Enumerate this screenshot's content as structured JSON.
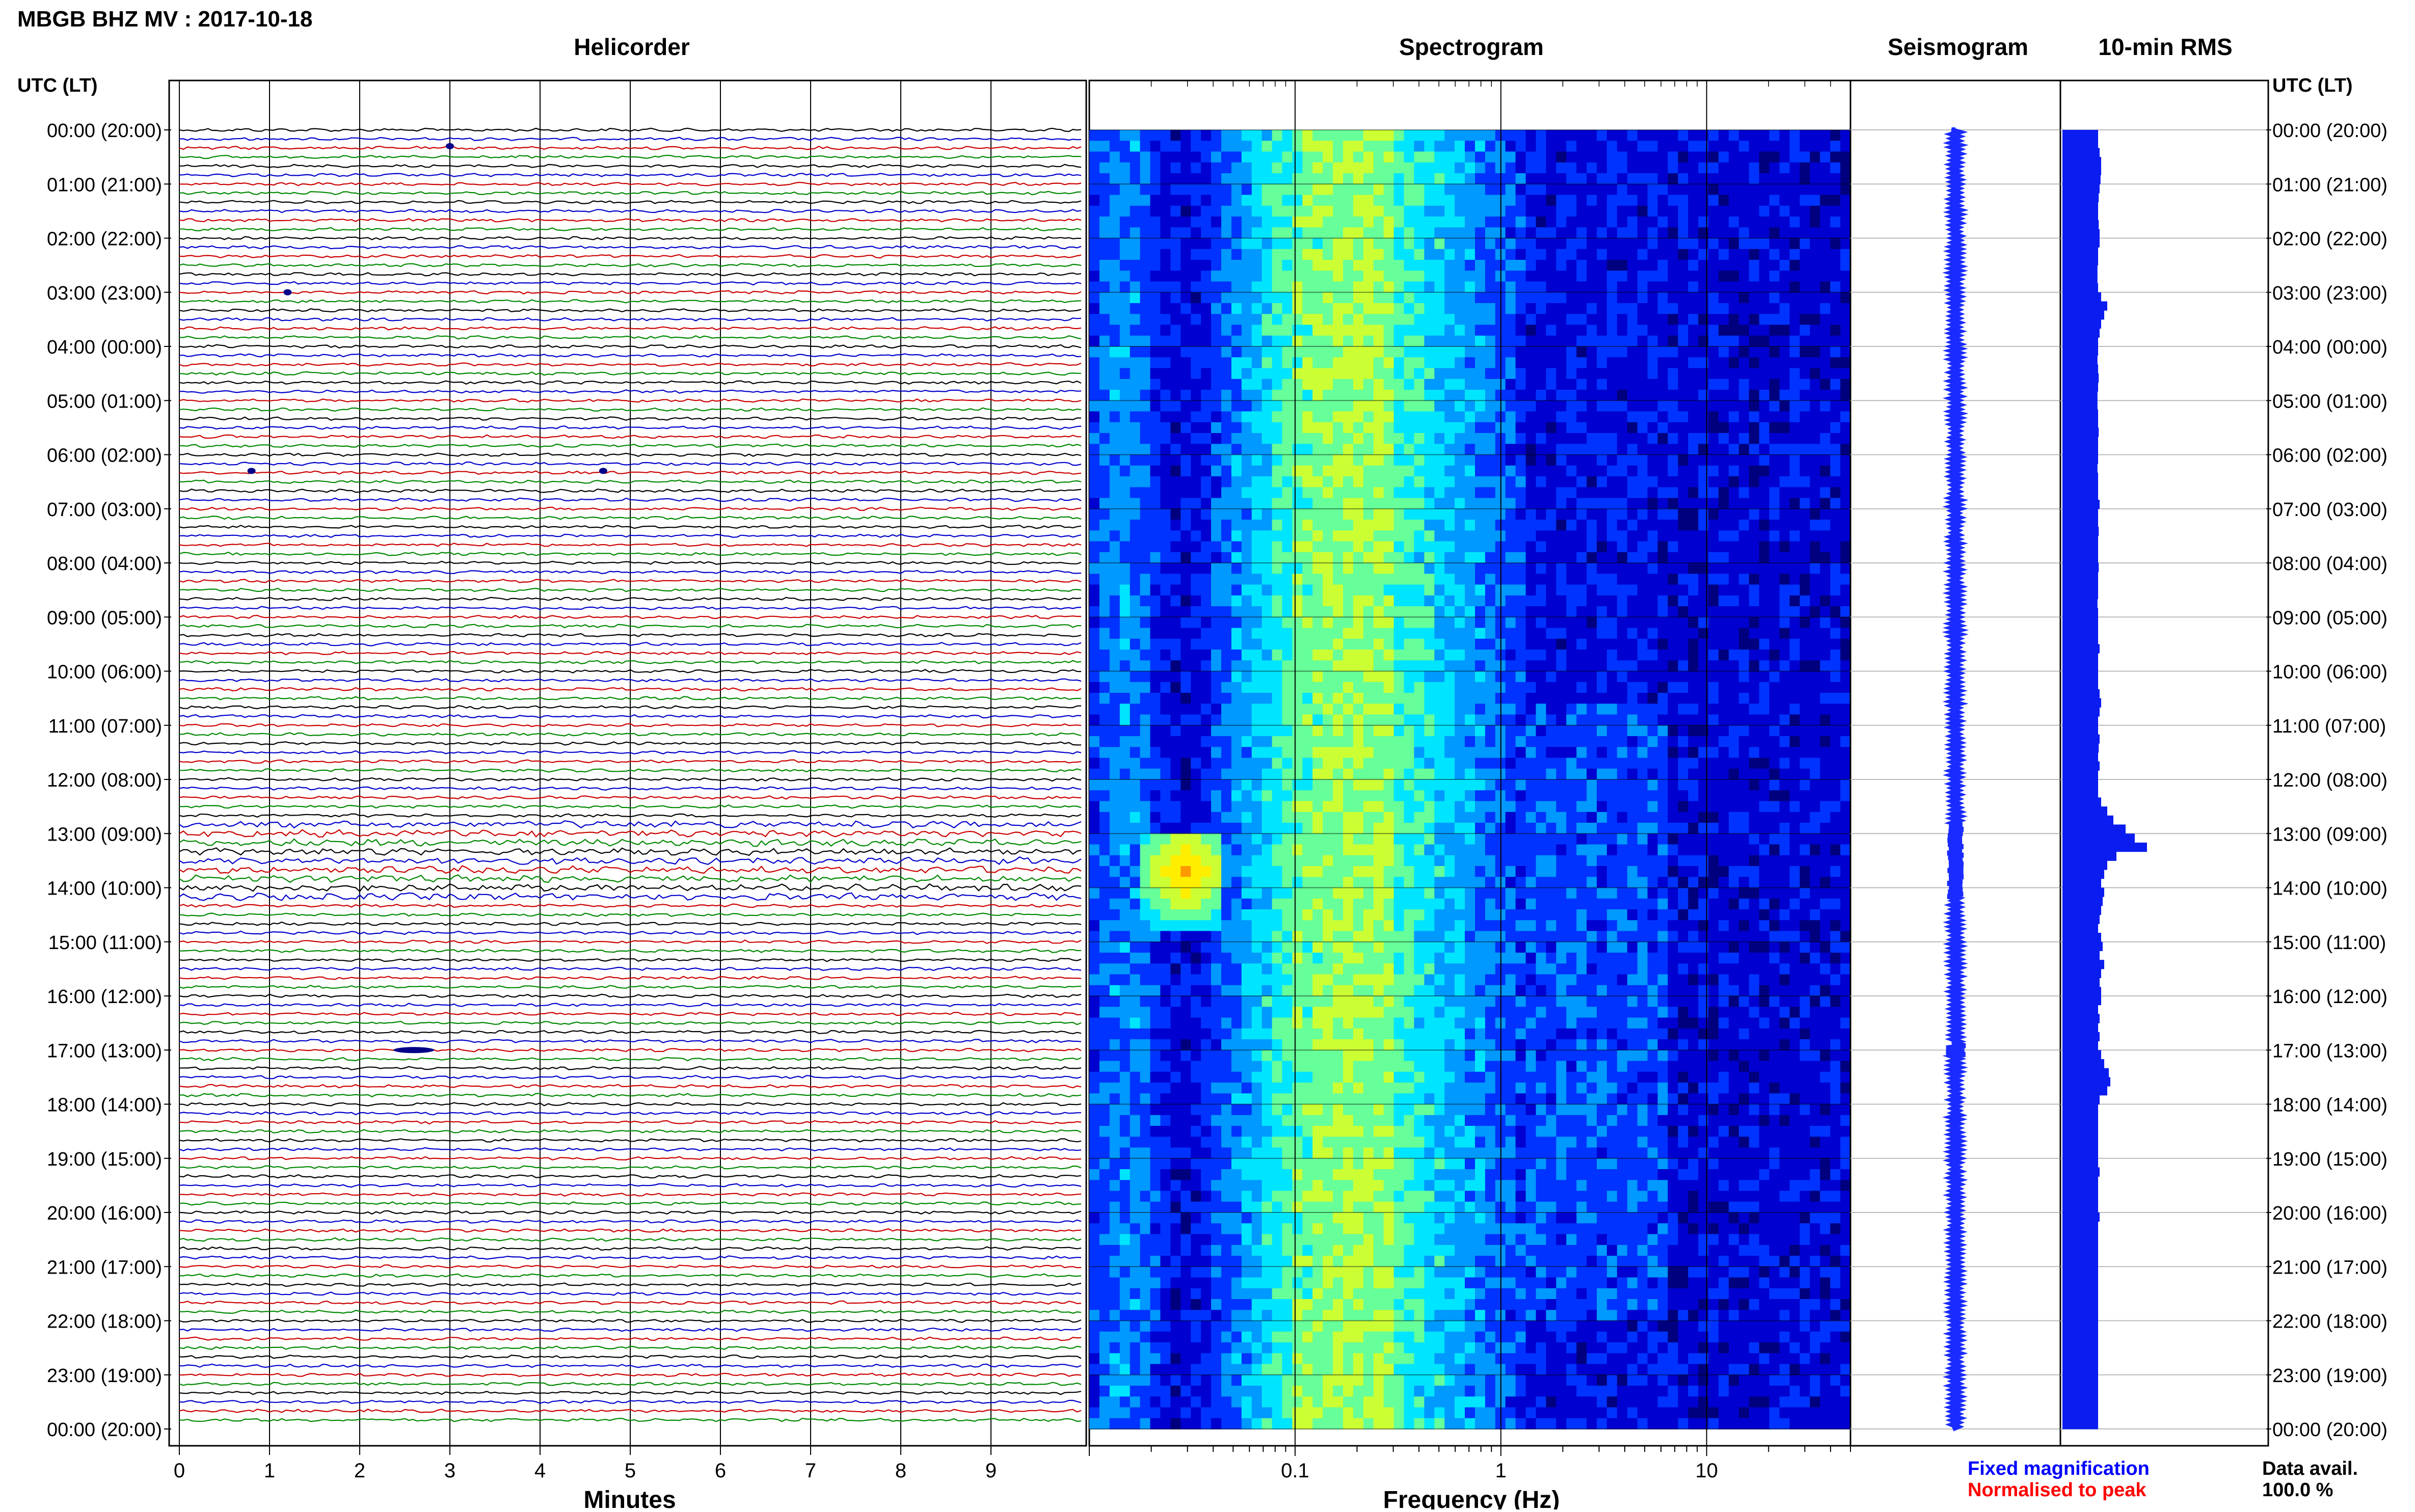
{
  "header": {
    "title": "MBGB BHZ MV : 2017-10-18"
  },
  "panels": {
    "helicorder_title": "Helicorder",
    "spectrogram_title": "Spectrogram",
    "seismogram_title": "Seismogram",
    "rms_title": "10-min RMS"
  },
  "axes": {
    "left_time_label": "UTC (LT)",
    "right_time_label": "UTC (LT)",
    "helicorder_xlabel": "Minutes",
    "spectrogram_xlabel": "Frequency (Hz)"
  },
  "legend": {
    "fixed": "Fixed magnification",
    "normalised": "Normalised to peak",
    "fixed_color": "#0000ff",
    "normalised_color": "#ff0000"
  },
  "availability": {
    "label": "Data avail.",
    "value": "100.0 %"
  },
  "colors": {
    "trace_cycle": [
      "#000000",
      "#0000cc",
      "#cc0000",
      "#008800"
    ],
    "seismogram": "#1a2bff",
    "rms": "#0a1cf0",
    "spectro_colormap": [
      "#00007f",
      "#0000d0",
      "#0033ff",
      "#0099ff",
      "#00e5ff",
      "#66ff99",
      "#ccff33",
      "#ffee00",
      "#ff9900",
      "#ff2200"
    ]
  },
  "chart_data": {
    "type": "helicorder",
    "time_ticks": [
      "00:00 (20:00)",
      "01:00 (21:00)",
      "02:00 (22:00)",
      "03:00 (23:00)",
      "04:00 (00:00)",
      "05:00 (01:00)",
      "06:00 (02:00)",
      "07:00 (03:00)",
      "08:00 (04:00)",
      "09:00 (05:00)",
      "10:00 (06:00)",
      "11:00 (07:00)",
      "12:00 (08:00)",
      "13:00 (09:00)",
      "14:00 (10:00)",
      "15:00 (11:00)",
      "16:00 (12:00)",
      "17:00 (13:00)",
      "18:00 (14:00)",
      "19:00 (15:00)",
      "20:00 (16:00)",
      "21:00 (17:00)",
      "22:00 (18:00)",
      "23:00 (19:00)",
      "00:00 (20:00)"
    ],
    "helicorder": {
      "xlim": [
        0,
        10
      ],
      "xticks": [
        0,
        1,
        2,
        3,
        4,
        5,
        6,
        7,
        8,
        9
      ],
      "lines_per_hour": 6,
      "hours": 24
    },
    "spectrogram": {
      "xscale": "log",
      "xlim": [
        0.01,
        50
      ],
      "xticks": [
        0.1,
        1,
        10
      ],
      "xtick_labels": [
        "0.1",
        "1",
        "10"
      ]
    },
    "rms": {
      "interval_minutes": 10,
      "values": [
        1.0,
        1.0,
        1.05,
        1.1,
        1.1,
        1.08,
        1.05,
        1.02,
        1.0,
        1.0,
        1.02,
        1.05,
        1.05,
        1.0,
        1.0,
        0.98,
        0.98,
        1.0,
        1.1,
        1.3,
        1.2,
        1.1,
        1.05,
        1.0,
        1.0,
        0.98,
        1.0,
        1.02,
        1.0,
        0.98,
        0.98,
        1.0,
        1.0,
        1.02,
        1.0,
        1.0,
        1.0,
        0.98,
        1.0,
        1.0,
        1.0,
        1.05,
        1.0,
        1.0,
        1.02,
        1.0,
        1.0,
        1.0,
        1.02,
        1.0,
        1.0,
        1.0,
        0.98,
        1.0,
        1.0,
        1.0,
        1.0,
        1.05,
        1.0,
        1.0,
        1.0,
        1.0,
        1.05,
        1.1,
        1.05,
        1.0,
        1.0,
        1.05,
        1.02,
        1.0,
        1.05,
        1.0,
        1.0,
        1.0,
        1.1,
        1.3,
        1.5,
        1.9,
        2.2,
        2.6,
        1.6,
        1.3,
        1.2,
        1.1,
        1.2,
        1.15,
        1.1,
        1.05,
        1.0,
        1.1,
        1.15,
        1.05,
        1.2,
        1.1,
        1.05,
        1.1,
        1.1,
        1.0,
        1.05,
        1.0,
        1.05,
        1.0,
        1.1,
        1.2,
        1.35,
        1.4,
        1.3,
        1.05,
        1.0,
        1.0,
        1.0,
        1.0,
        1.0,
        1.0,
        1.0,
        1.05,
        1.0,
        1.0,
        1.0,
        1.0,
        1.05,
        1.0,
        1.0,
        1.0,
        1.0,
        1.0,
        1.0,
        1.0,
        1.0,
        1.0,
        1.0,
        1.0,
        1.0,
        1.0,
        1.0,
        1.0,
        1.0,
        1.0,
        1.0,
        1.0,
        1.0,
        1.0,
        1.0,
        1.0
      ]
    }
  }
}
